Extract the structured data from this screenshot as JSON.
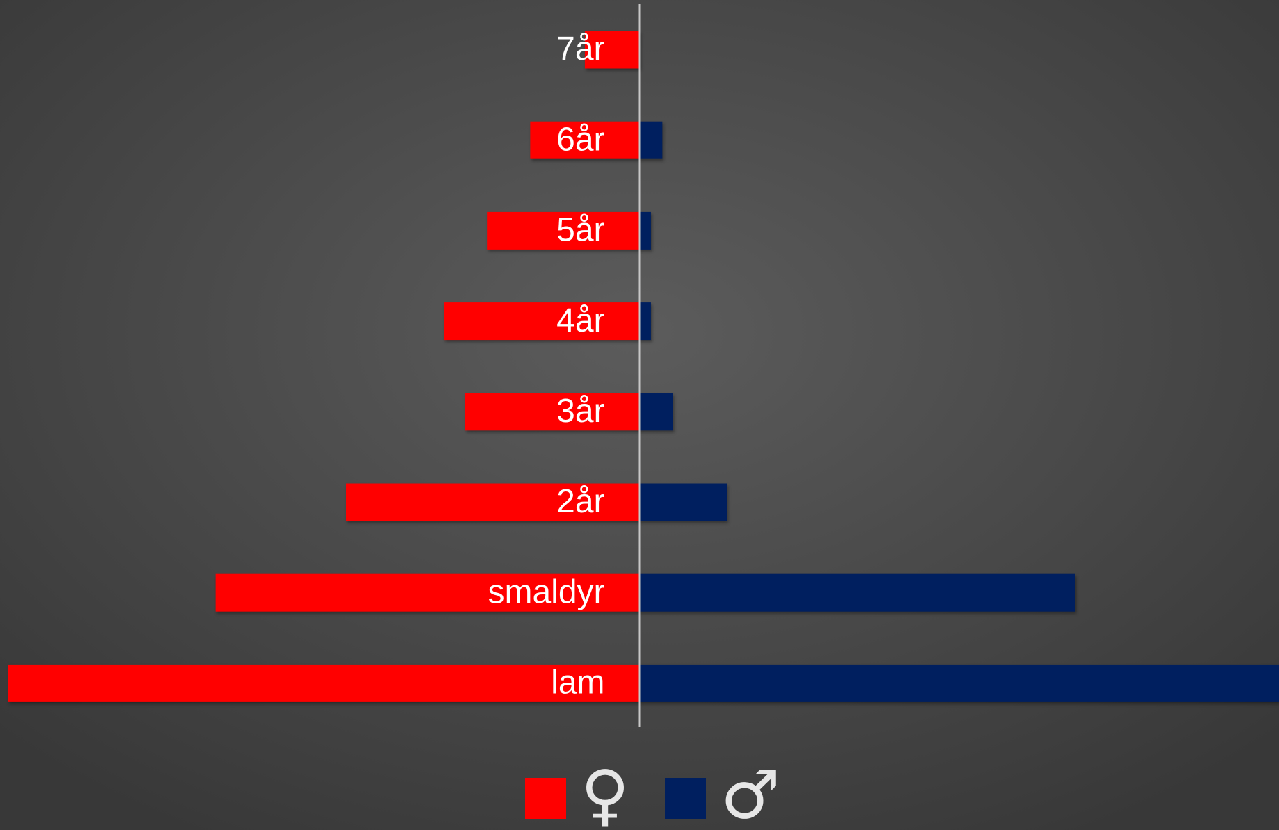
{
  "chart_data": {
    "type": "butterfly_bar",
    "categories": [
      "7år",
      "6år",
      "5år",
      "4år",
      "3år",
      "2år",
      "smaldyr",
      "lam"
    ],
    "series": [
      {
        "name": "♀",
        "color": "#ff0000",
        "side": "left",
        "values": [
          67,
          134,
          187,
          240,
          214,
          360,
          520,
          774
        ]
      },
      {
        "name": "♂",
        "color": "#001f5f",
        "side": "right",
        "values": [
          0,
          28,
          14,
          14,
          41,
          107,
          534,
          784
        ]
      }
    ],
    "xlim": [
      -784,
      784
    ]
  }
}
